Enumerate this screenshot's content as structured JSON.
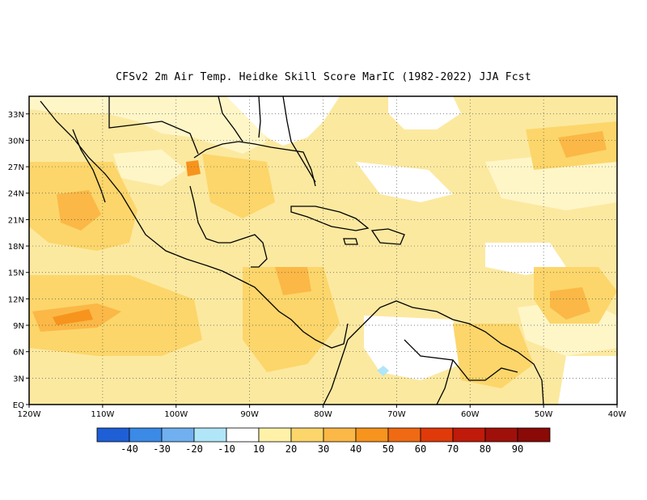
{
  "title": "CFSv2  2m Air Temp. Heidke Skill Score MarIC (1982-2022) JJA Fcst",
  "map": {
    "lon_ticks": [
      "120W",
      "110W",
      "100W",
      "90W",
      "80W",
      "70W",
      "60W",
      "50W",
      "40W"
    ],
    "lat_ticks": [
      "EQ",
      "3N",
      "6N",
      "9N",
      "12N",
      "15N",
      "18N",
      "21N",
      "24N",
      "27N",
      "30N",
      "33N"
    ],
    "lon_range": [
      -120,
      -40
    ],
    "lat_range": [
      0,
      35
    ],
    "grid": "dotted"
  },
  "colorbar": {
    "labels": [
      "-40",
      "-30",
      "-20",
      "-10",
      "10",
      "20",
      "30",
      "40",
      "50",
      "60",
      "70",
      "80",
      "90"
    ],
    "colors": [
      "#1f5fd6",
      "#3a8ae6",
      "#70b0f0",
      "#b0e6f8",
      "#ffffff",
      "#fff2a8",
      "#fcd66a",
      "#fbb846",
      "#f7941d",
      "#ef6a12",
      "#e03a0a",
      "#c01a0a",
      "#a0100a"
    ]
  }
}
